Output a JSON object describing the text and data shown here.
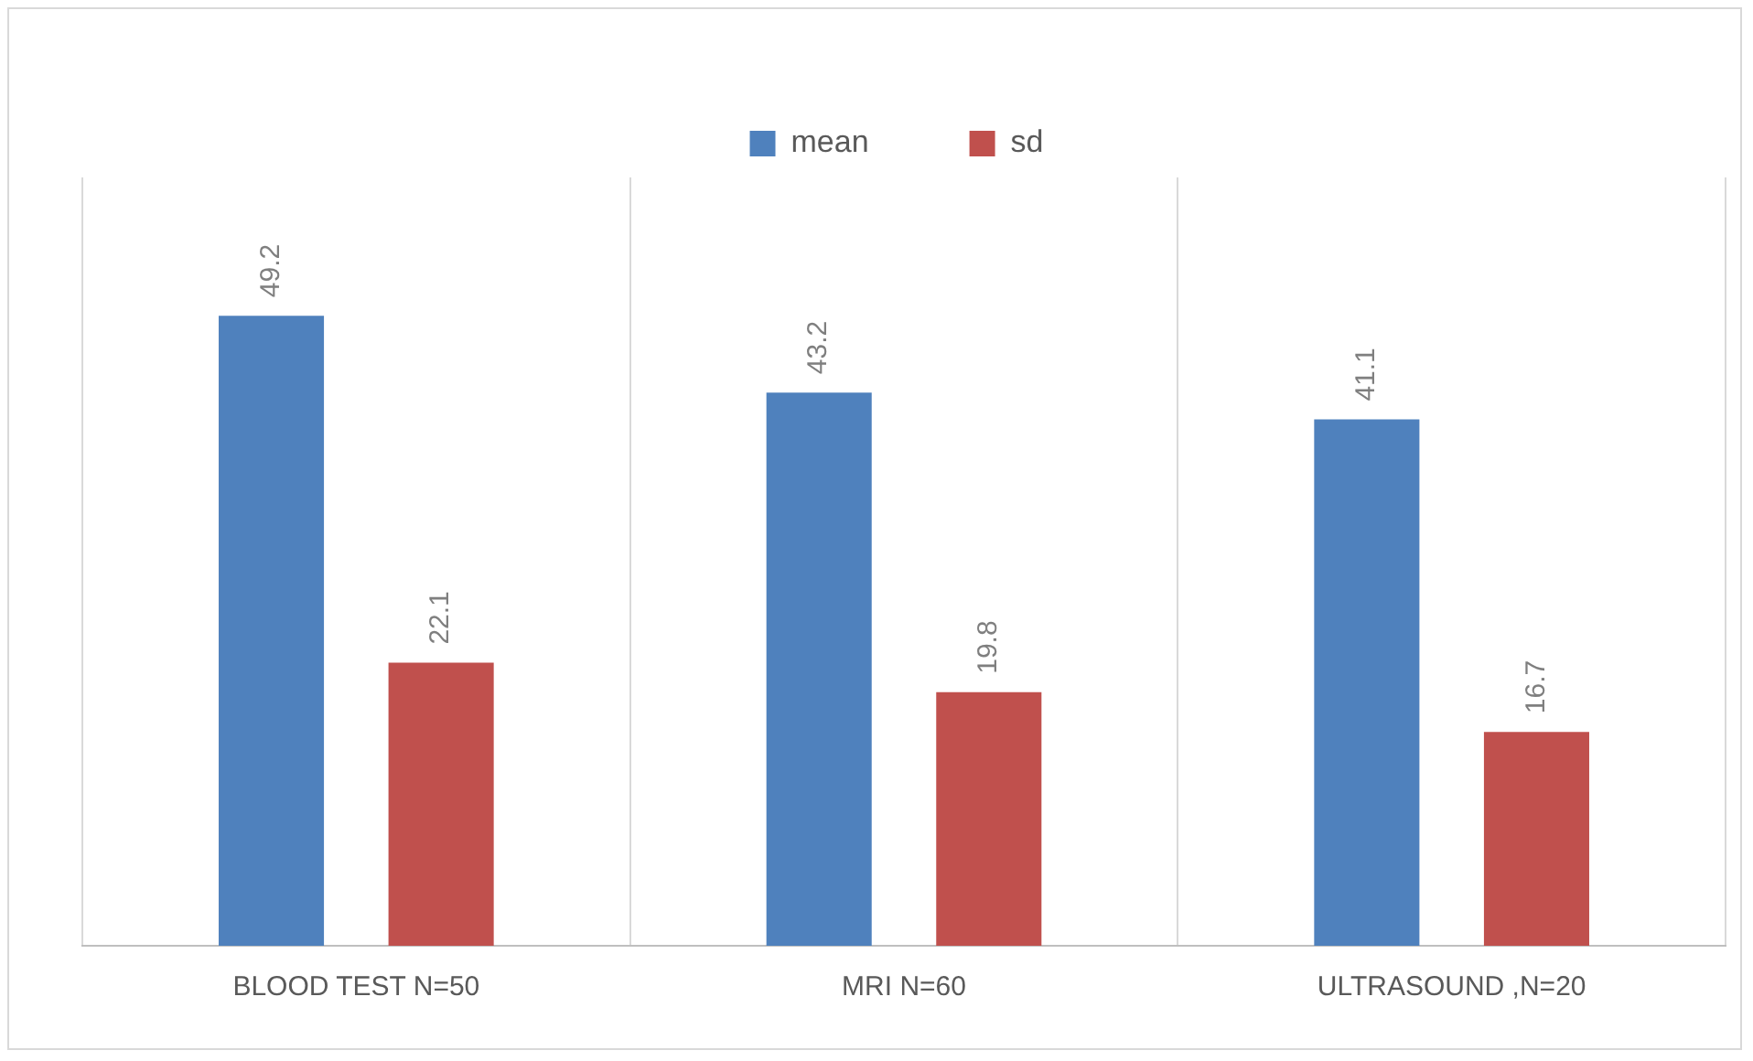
{
  "chart_data": {
    "type": "bar",
    "categories": [
      "BLOOD TEST N=50",
      "MRI N=60",
      "ULTRASOUND ,N=20"
    ],
    "series": [
      {
        "name": "mean",
        "color": "#4f81bd",
        "values": [
          49.2,
          43.2,
          41.1
        ]
      },
      {
        "name": "sd",
        "color": "#c0504d",
        "values": [
          22.1,
          19.8,
          16.7
        ]
      }
    ],
    "ylim": [
      0,
      60
    ],
    "tick_labels": "x",
    "grid": "x",
    "legend": "top",
    "data_labels": true
  }
}
